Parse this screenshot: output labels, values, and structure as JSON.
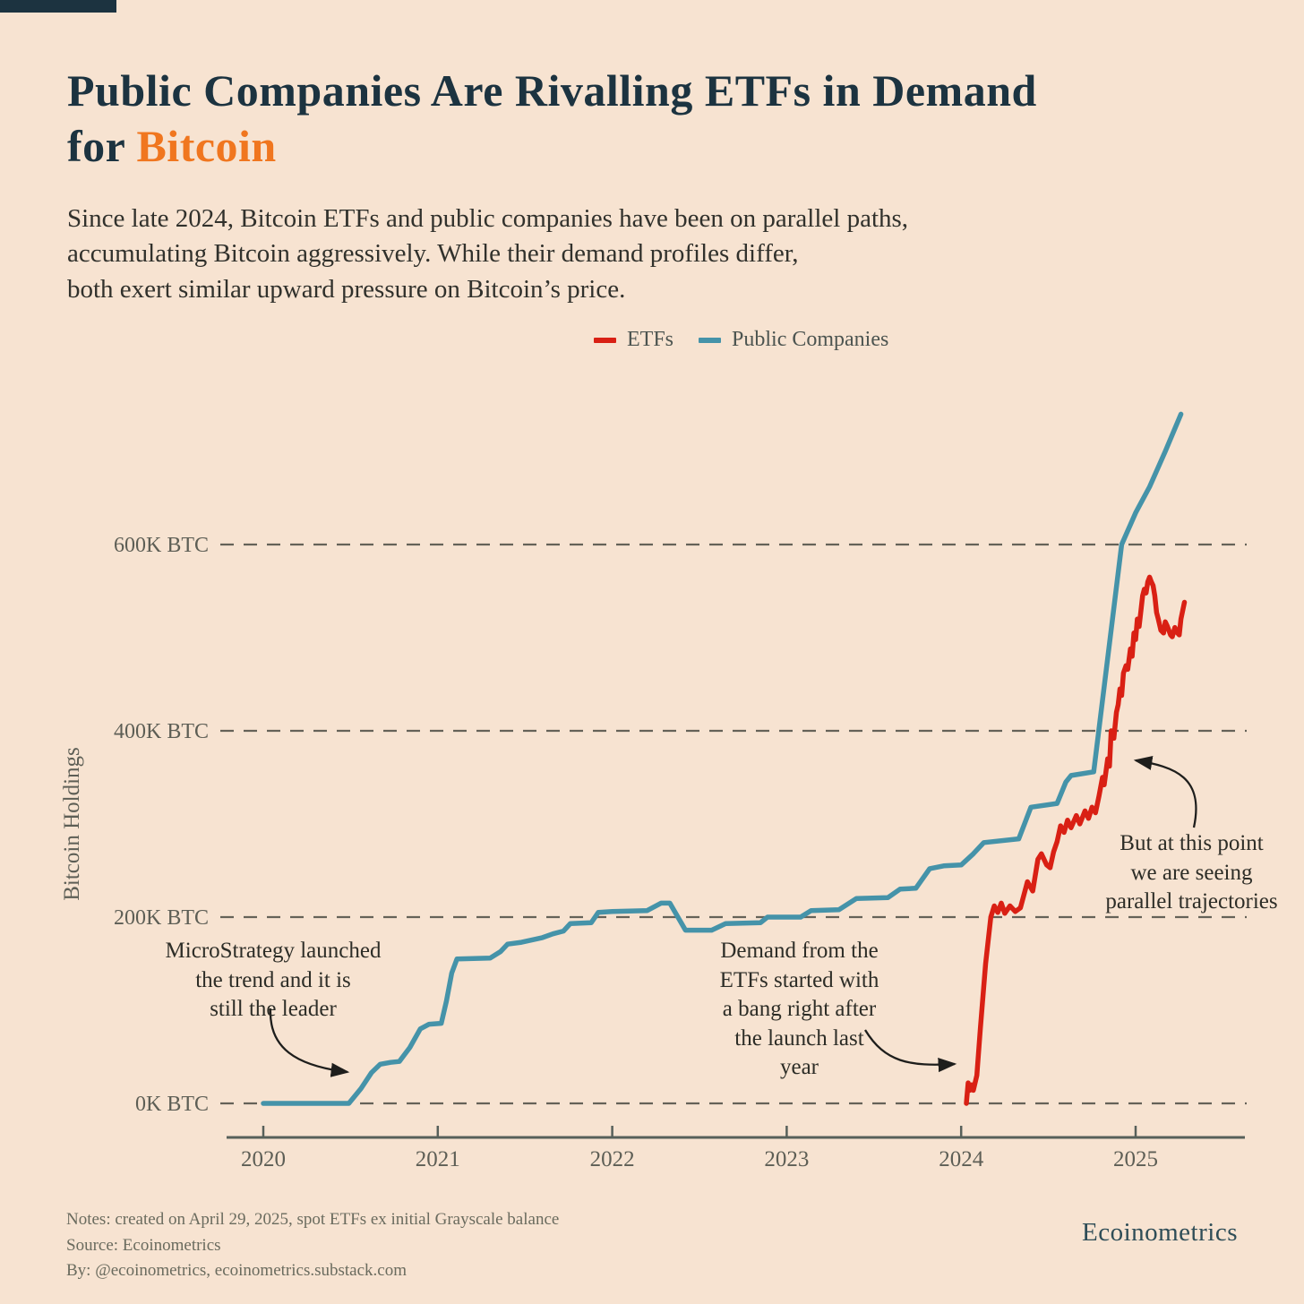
{
  "header": {
    "title_prefix": "Public Companies Are Rivalling ETFs in Demand\nfor ",
    "title_highlight": "Bitcoin",
    "subtitle": "Since late 2024, Bitcoin ETFs and public companies have been on parallel paths,\naccumulating Bitcoin aggressively. While their demand profiles differ,\nboth exert similar upward pressure on Bitcoin’s price.",
    "title_color": "#1c3340",
    "highlight_color": "#f0761f"
  },
  "legend": [
    {
      "label": "ETFs",
      "color": "#d92014"
    },
    {
      "label": "Public Companies",
      "color": "#4593a9"
    }
  ],
  "chart_data": {
    "type": "line",
    "ylabel": "Bitcoin Holdings",
    "xlabel": "",
    "unit": "K BTC",
    "grid": "horizontal-dashed",
    "legend_position": "top-center",
    "xlim": [
      2019.78,
      2025.63
    ],
    "ylim": [
      -40,
      800
    ],
    "x_ticks": [
      "2020",
      "2021",
      "2022",
      "2023",
      "2024",
      "2025"
    ],
    "x_tick_values": [
      2020,
      2021,
      2022,
      2023,
      2024,
      2025
    ],
    "y_gridlines": [
      {
        "value": 0,
        "label": "0K BTC"
      },
      {
        "value": 200,
        "label": "200K BTC"
      },
      {
        "value": 400,
        "label": "400K BTC"
      },
      {
        "value": 600,
        "label": "600K BTC"
      }
    ],
    "series": [
      {
        "name": "Public Companies",
        "color": "#4593a9",
        "points": [
          [
            2020.0,
            0
          ],
          [
            2020.49,
            0
          ],
          [
            2020.56,
            16
          ],
          [
            2020.62,
            33
          ],
          [
            2020.67,
            42
          ],
          [
            2020.73,
            44
          ],
          [
            2020.78,
            45
          ],
          [
            2020.84,
            60
          ],
          [
            2020.9,
            80
          ],
          [
            2020.95,
            85
          ],
          [
            2021.02,
            86
          ],
          [
            2021.05,
            110
          ],
          [
            2021.08,
            140
          ],
          [
            2021.11,
            155
          ],
          [
            2021.3,
            156
          ],
          [
            2021.36,
            163
          ],
          [
            2021.4,
            171
          ],
          [
            2021.48,
            173
          ],
          [
            2021.6,
            178
          ],
          [
            2021.66,
            182
          ],
          [
            2021.72,
            185
          ],
          [
            2021.76,
            193
          ],
          [
            2021.88,
            194
          ],
          [
            2021.92,
            205
          ],
          [
            2022.0,
            206
          ],
          [
            2022.2,
            207
          ],
          [
            2022.28,
            215
          ],
          [
            2022.33,
            215
          ],
          [
            2022.42,
            186
          ],
          [
            2022.57,
            186
          ],
          [
            2022.65,
            193
          ],
          [
            2022.85,
            194
          ],
          [
            2022.89,
            200
          ],
          [
            2023.08,
            200
          ],
          [
            2023.14,
            207
          ],
          [
            2023.3,
            208
          ],
          [
            2023.4,
            220
          ],
          [
            2023.58,
            221
          ],
          [
            2023.65,
            230
          ],
          [
            2023.74,
            231
          ],
          [
            2023.82,
            252
          ],
          [
            2023.9,
            255
          ],
          [
            2024.0,
            256
          ],
          [
            2024.07,
            268
          ],
          [
            2024.13,
            280
          ],
          [
            2024.33,
            284
          ],
          [
            2024.4,
            318
          ],
          [
            2024.55,
            322
          ],
          [
            2024.6,
            345
          ],
          [
            2024.63,
            352
          ],
          [
            2024.76,
            356
          ],
          [
            2024.92,
            600
          ],
          [
            2025.0,
            634
          ],
          [
            2025.08,
            662
          ],
          [
            2025.17,
            700
          ],
          [
            2025.26,
            740
          ]
        ]
      },
      {
        "name": "ETFs",
        "color": "#d92014",
        "points": [
          [
            2024.03,
            0
          ],
          [
            2024.04,
            22
          ],
          [
            2024.05,
            14
          ],
          [
            2024.06,
            20
          ],
          [
            2024.07,
            14
          ],
          [
            2024.09,
            30
          ],
          [
            2024.11,
            80
          ],
          [
            2024.14,
            150
          ],
          [
            2024.17,
            200
          ],
          [
            2024.19,
            212
          ],
          [
            2024.21,
            205
          ],
          [
            2024.23,
            215
          ],
          [
            2024.25,
            204
          ],
          [
            2024.28,
            212
          ],
          [
            2024.31,
            206
          ],
          [
            2024.34,
            210
          ],
          [
            2024.38,
            238
          ],
          [
            2024.41,
            228
          ],
          [
            2024.44,
            262
          ],
          [
            2024.46,
            268
          ],
          [
            2024.49,
            256
          ],
          [
            2024.51,
            253
          ],
          [
            2024.53,
            270
          ],
          [
            2024.55,
            281
          ],
          [
            2024.57,
            298
          ],
          [
            2024.59,
            291
          ],
          [
            2024.61,
            304
          ],
          [
            2024.63,
            296
          ],
          [
            2024.66,
            309
          ],
          [
            2024.68,
            300
          ],
          [
            2024.71,
            314
          ],
          [
            2024.73,
            306
          ],
          [
            2024.75,
            318
          ],
          [
            2024.77,
            312
          ],
          [
            2024.79,
            330
          ],
          [
            2024.81,
            350
          ],
          [
            2024.82,
            342
          ],
          [
            2024.84,
            370
          ],
          [
            2024.85,
            362
          ],
          [
            2024.86,
            400
          ],
          [
            2024.875,
            392
          ],
          [
            2024.89,
            420
          ],
          [
            2024.9,
            428
          ],
          [
            2024.91,
            445
          ],
          [
            2024.92,
            438
          ],
          [
            2024.93,
            462
          ],
          [
            2024.945,
            470
          ],
          [
            2024.955,
            466
          ],
          [
            2024.97,
            488
          ],
          [
            2024.98,
            480
          ],
          [
            2024.99,
            505
          ],
          [
            2025.0,
            498
          ],
          [
            2025.01,
            520
          ],
          [
            2025.02,
            512
          ],
          [
            2025.03,
            528
          ],
          [
            2025.04,
            545
          ],
          [
            2025.05,
            552
          ],
          [
            2025.06,
            548
          ],
          [
            2025.07,
            560
          ],
          [
            2025.08,
            565
          ],
          [
            2025.09,
            560
          ],
          [
            2025.1,
            556
          ],
          [
            2025.11,
            545
          ],
          [
            2025.12,
            527
          ],
          [
            2025.13,
            520
          ],
          [
            2025.145,
            508
          ],
          [
            2025.16,
            505
          ],
          [
            2025.17,
            517
          ],
          [
            2025.18,
            513
          ],
          [
            2025.2,
            503
          ],
          [
            2025.21,
            501
          ],
          [
            2025.225,
            511
          ],
          [
            2025.24,
            505
          ],
          [
            2025.25,
            503
          ],
          [
            2025.26,
            520
          ],
          [
            2025.28,
            538
          ]
        ]
      }
    ],
    "annotations": [
      {
        "text": "MicroStrategy launched\nthe trend and it is\nstill the leader"
      },
      {
        "text": "Demand from the\nETFs started with\na bang right after\nthe launch last\nyear"
      },
      {
        "text": "But at this point\nwe are seeing\nparallel trajectories"
      }
    ]
  },
  "footer": {
    "notes": "Notes: created on April 29, 2025, spot ETFs ex initial Grayscale balance\nSource: Ecoinometrics\nBy: @ecoinometrics, ecoinometrics.substack.com",
    "brand": "Ecoinometrics"
  }
}
